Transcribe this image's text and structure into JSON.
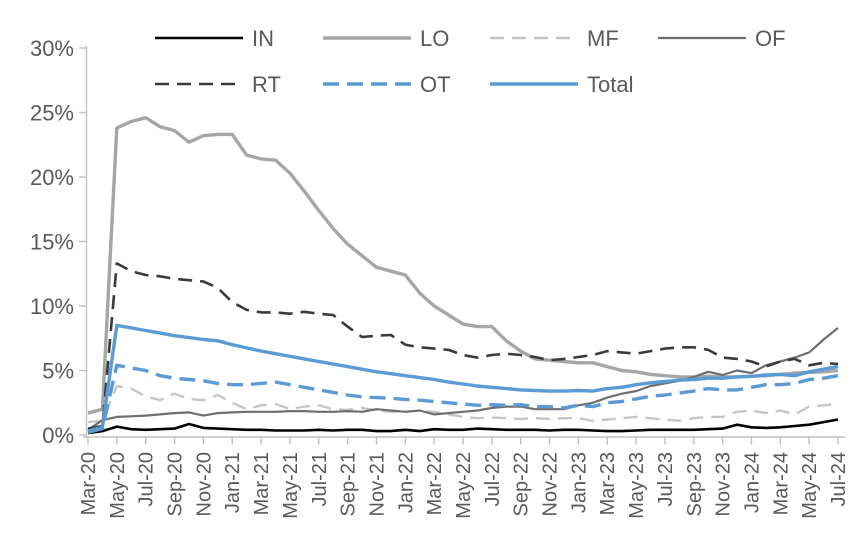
{
  "chart_data": {
    "type": "line",
    "title": "",
    "xlabel": "",
    "ylabel": "",
    "grid": false,
    "legend_position": "top",
    "legend_rows": [
      [
        "IN",
        "LO",
        "MF",
        "OF"
      ],
      [
        "RT",
        "OT",
        "Total"
      ]
    ],
    "colors": {
      "accent_blue": "#5b9bd5",
      "gray_series": "#a6a6a6",
      "light_gray_series": "#c5c5c5",
      "dark_gray_series": "#6e6e6e",
      "near_black_series": "#3a3a3a",
      "black_series": "#000000",
      "axis_text": "#595959",
      "axis_line": "#bfbfbf"
    },
    "y_axis": {
      "min": 0,
      "max": 30,
      "unit": "%",
      "tick_labels": [
        "0%",
        "5%",
        "10%",
        "15%",
        "20%",
        "25%",
        "30%"
      ]
    },
    "x_axis": {
      "tick_labels": [
        "Mar-20",
        "May-20",
        "Jul-20",
        "Sep-20",
        "Nov-20",
        "Jan-21",
        "Mar-21",
        "May-21",
        "Jul-21",
        "Sep-21",
        "Nov-21",
        "Jan-22",
        "Mar-22",
        "May-22",
        "Jul-22",
        "Sep-22",
        "Nov-22",
        "Jan-23",
        "Mar-23",
        "May-23",
        "Jul-23",
        "Sep-23",
        "Nov-23",
        "Jan-24",
        "Mar-24",
        "May-24",
        "Jul-24"
      ],
      "categories": [
        "Mar-20",
        "Apr-20",
        "May-20",
        "Jun-20",
        "Jul-20",
        "Aug-20",
        "Sep-20",
        "Oct-20",
        "Nov-20",
        "Dec-20",
        "Jan-21",
        "Feb-21",
        "Mar-21",
        "Apr-21",
        "May-21",
        "Jun-21",
        "Jul-21",
        "Aug-21",
        "Sep-21",
        "Oct-21",
        "Nov-21",
        "Dec-21",
        "Jan-22",
        "Feb-22",
        "Mar-22",
        "Apr-22",
        "May-22",
        "Jun-22",
        "Jul-22",
        "Aug-22",
        "Sep-22",
        "Oct-22",
        "Nov-22",
        "Dec-22",
        "Jan-23",
        "Feb-23",
        "Mar-23",
        "Apr-23",
        "May-23",
        "Jun-23",
        "Jul-23",
        "Aug-23",
        "Sep-23",
        "Oct-23",
        "Nov-23",
        "Dec-23",
        "Jan-24",
        "Feb-24",
        "Mar-24",
        "Apr-24",
        "May-24",
        "Jun-24",
        "Jul-24"
      ]
    },
    "series": [
      {
        "name": "IN",
        "color": "#000000",
        "style": "solid",
        "width": 2.6,
        "values": [
          0.15,
          0.3,
          0.65,
          0.45,
          0.4,
          0.45,
          0.5,
          0.85,
          0.55,
          0.5,
          0.45,
          0.4,
          0.4,
          0.35,
          0.35,
          0.35,
          0.4,
          0.35,
          0.4,
          0.4,
          0.3,
          0.3,
          0.4,
          0.3,
          0.45,
          0.4,
          0.4,
          0.5,
          0.45,
          0.4,
          0.4,
          0.4,
          0.35,
          0.4,
          0.4,
          0.35,
          0.3,
          0.3,
          0.35,
          0.4,
          0.4,
          0.4,
          0.4,
          0.45,
          0.5,
          0.8,
          0.6,
          0.55,
          0.6,
          0.7,
          0.8,
          1.0,
          1.2
        ]
      },
      {
        "name": "LO",
        "color": "#a6a6a6",
        "style": "solid",
        "width": 3.4,
        "values": [
          1.7,
          2.0,
          23.8,
          24.3,
          24.6,
          23.9,
          23.6,
          22.7,
          23.2,
          23.3,
          23.3,
          21.7,
          21.4,
          21.3,
          20.3,
          18.9,
          17.4,
          16.0,
          14.8,
          13.9,
          13.0,
          12.7,
          12.4,
          11.0,
          10.0,
          9.3,
          8.6,
          8.4,
          8.4,
          7.3,
          6.5,
          5.9,
          5.8,
          5.7,
          5.6,
          5.6,
          5.3,
          5.0,
          4.9,
          4.7,
          4.6,
          4.5,
          4.5,
          4.55,
          4.5,
          4.5,
          4.55,
          4.6,
          4.7,
          4.8,
          4.85,
          4.9,
          5.0
        ]
      },
      {
        "name": "MF",
        "color": "#c5c5c5",
        "style": "dashed",
        "width": 2.4,
        "values": [
          1.0,
          1.1,
          3.8,
          3.6,
          3.0,
          2.7,
          3.2,
          2.8,
          2.7,
          3.1,
          2.5,
          2.0,
          2.3,
          2.4,
          2.0,
          2.2,
          2.3,
          2.0,
          1.95,
          2.1,
          1.9,
          1.8,
          1.8,
          1.9,
          1.8,
          1.6,
          1.4,
          1.3,
          1.35,
          1.3,
          1.25,
          1.3,
          1.25,
          1.3,
          1.3,
          1.1,
          1.2,
          1.3,
          1.4,
          1.3,
          1.2,
          1.1,
          1.3,
          1.4,
          1.4,
          1.8,
          1.9,
          1.7,
          1.9,
          1.6,
          2.2,
          2.3,
          2.4
        ]
      },
      {
        "name": "OF",
        "color": "#6e6e6e",
        "style": "solid",
        "width": 2.2,
        "values": [
          0.4,
          1.15,
          1.4,
          1.45,
          1.5,
          1.6,
          1.7,
          1.75,
          1.5,
          1.7,
          1.75,
          1.8,
          1.8,
          1.8,
          1.85,
          1.85,
          1.8,
          1.8,
          1.85,
          1.8,
          2.0,
          1.9,
          1.8,
          1.9,
          1.6,
          1.7,
          1.8,
          1.9,
          2.1,
          2.2,
          2.2,
          2.0,
          2.0,
          2.0,
          2.3,
          2.5,
          2.9,
          3.2,
          3.4,
          3.8,
          4.0,
          4.2,
          4.5,
          4.9,
          4.65,
          5.0,
          4.8,
          5.4,
          5.7,
          6.0,
          6.4,
          7.4,
          8.3
        ]
      },
      {
        "name": "RT",
        "color": "#3a3a3a",
        "style": "dashed",
        "width": 2.6,
        "values": [
          0.5,
          0.7,
          13.3,
          12.7,
          12.4,
          12.3,
          12.1,
          12.0,
          11.9,
          11.4,
          10.3,
          9.7,
          9.5,
          9.5,
          9.4,
          9.55,
          9.4,
          9.3,
          8.4,
          7.6,
          7.7,
          7.75,
          7.0,
          6.8,
          6.7,
          6.6,
          6.2,
          6.0,
          6.2,
          6.3,
          6.2,
          6.05,
          5.8,
          5.9,
          6.05,
          6.2,
          6.5,
          6.4,
          6.3,
          6.5,
          6.7,
          6.8,
          6.8,
          6.6,
          6.0,
          5.9,
          5.7,
          5.3,
          5.7,
          5.9,
          5.4,
          5.6,
          5.5
        ]
      },
      {
        "name": "OT",
        "color": "#5b9bd5",
        "style": "dashed",
        "width": 3.4,
        "values": [
          0.2,
          0.5,
          5.4,
          5.2,
          5.0,
          4.6,
          4.4,
          4.3,
          4.2,
          4.0,
          3.9,
          3.9,
          4.0,
          4.1,
          3.9,
          3.7,
          3.5,
          3.3,
          3.1,
          2.95,
          2.9,
          2.85,
          2.75,
          2.7,
          2.6,
          2.5,
          2.4,
          2.3,
          2.35,
          2.3,
          2.35,
          2.2,
          2.2,
          2.1,
          2.3,
          2.2,
          2.5,
          2.6,
          2.8,
          3.0,
          3.1,
          3.25,
          3.4,
          3.6,
          3.5,
          3.5,
          3.7,
          3.9,
          3.9,
          4.0,
          4.3,
          4.4,
          4.6
        ]
      },
      {
        "name": "Total",
        "color": "#5b9bd5",
        "style": "solid",
        "width": 3.4,
        "values": [
          0.3,
          0.6,
          8.5,
          8.3,
          8.1,
          7.9,
          7.7,
          7.55,
          7.4,
          7.3,
          7.0,
          6.75,
          6.5,
          6.3,
          6.1,
          5.9,
          5.7,
          5.5,
          5.3,
          5.1,
          4.9,
          4.75,
          4.6,
          4.45,
          4.3,
          4.1,
          3.95,
          3.8,
          3.7,
          3.6,
          3.5,
          3.45,
          3.4,
          3.4,
          3.45,
          3.4,
          3.6,
          3.7,
          3.9,
          4.05,
          4.15,
          4.25,
          4.3,
          4.4,
          4.4,
          4.5,
          4.55,
          4.65,
          4.7,
          4.6,
          4.9,
          5.1,
          5.3
        ]
      }
    ]
  }
}
